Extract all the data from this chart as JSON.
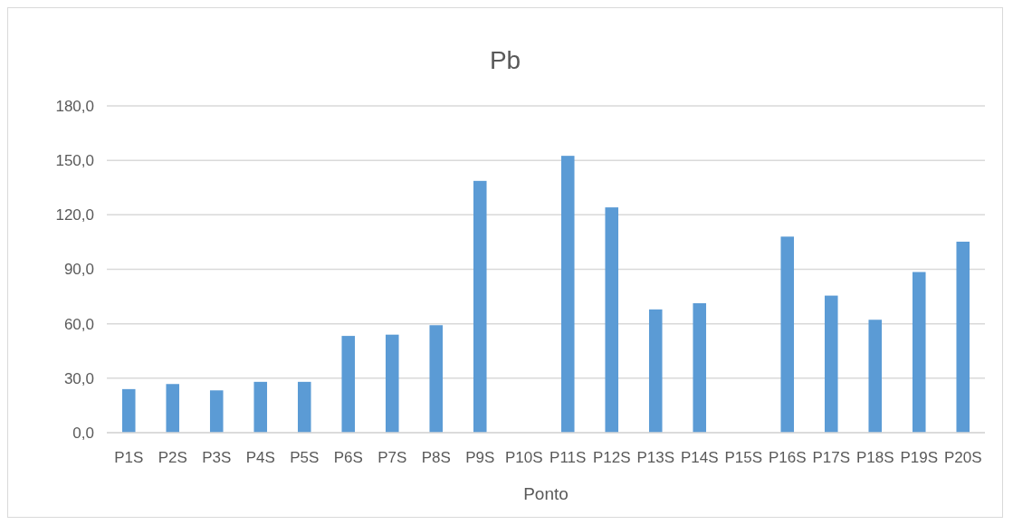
{
  "chart_data": {
    "type": "bar",
    "title": "Pb",
    "xlabel": "Ponto",
    "categories": [
      "P1S",
      "P2S",
      "P3S",
      "P4S",
      "P5S",
      "P6S",
      "P7S",
      "P8S",
      "P9S",
      "P10S",
      "P11S",
      "P12S",
      "P13S",
      "P14S",
      "P15S",
      "P16S",
      "P17S",
      "P18S",
      "P19S",
      "P20S"
    ],
    "values": [
      24.0,
      26.8,
      23.3,
      28.0,
      28.0,
      53.3,
      54.0,
      59.2,
      138.7,
      null,
      152.5,
      124.1,
      67.9,
      71.3,
      null,
      108.0,
      75.5,
      62.2,
      88.5,
      105.2
    ],
    "color": "#5b9bd5",
    "ylim": [
      0,
      180
    ],
    "yticks": [
      {
        "value": 0,
        "label": "0,0"
      },
      {
        "value": 30,
        "label": "30,0"
      },
      {
        "value": 60,
        "label": "60,0"
      },
      {
        "value": 90,
        "label": "90,0"
      },
      {
        "value": 120,
        "label": "120,0"
      },
      {
        "value": 150,
        "label": "150,0"
      },
      {
        "value": 180,
        "label": "180,0"
      }
    ],
    "grid": true
  }
}
